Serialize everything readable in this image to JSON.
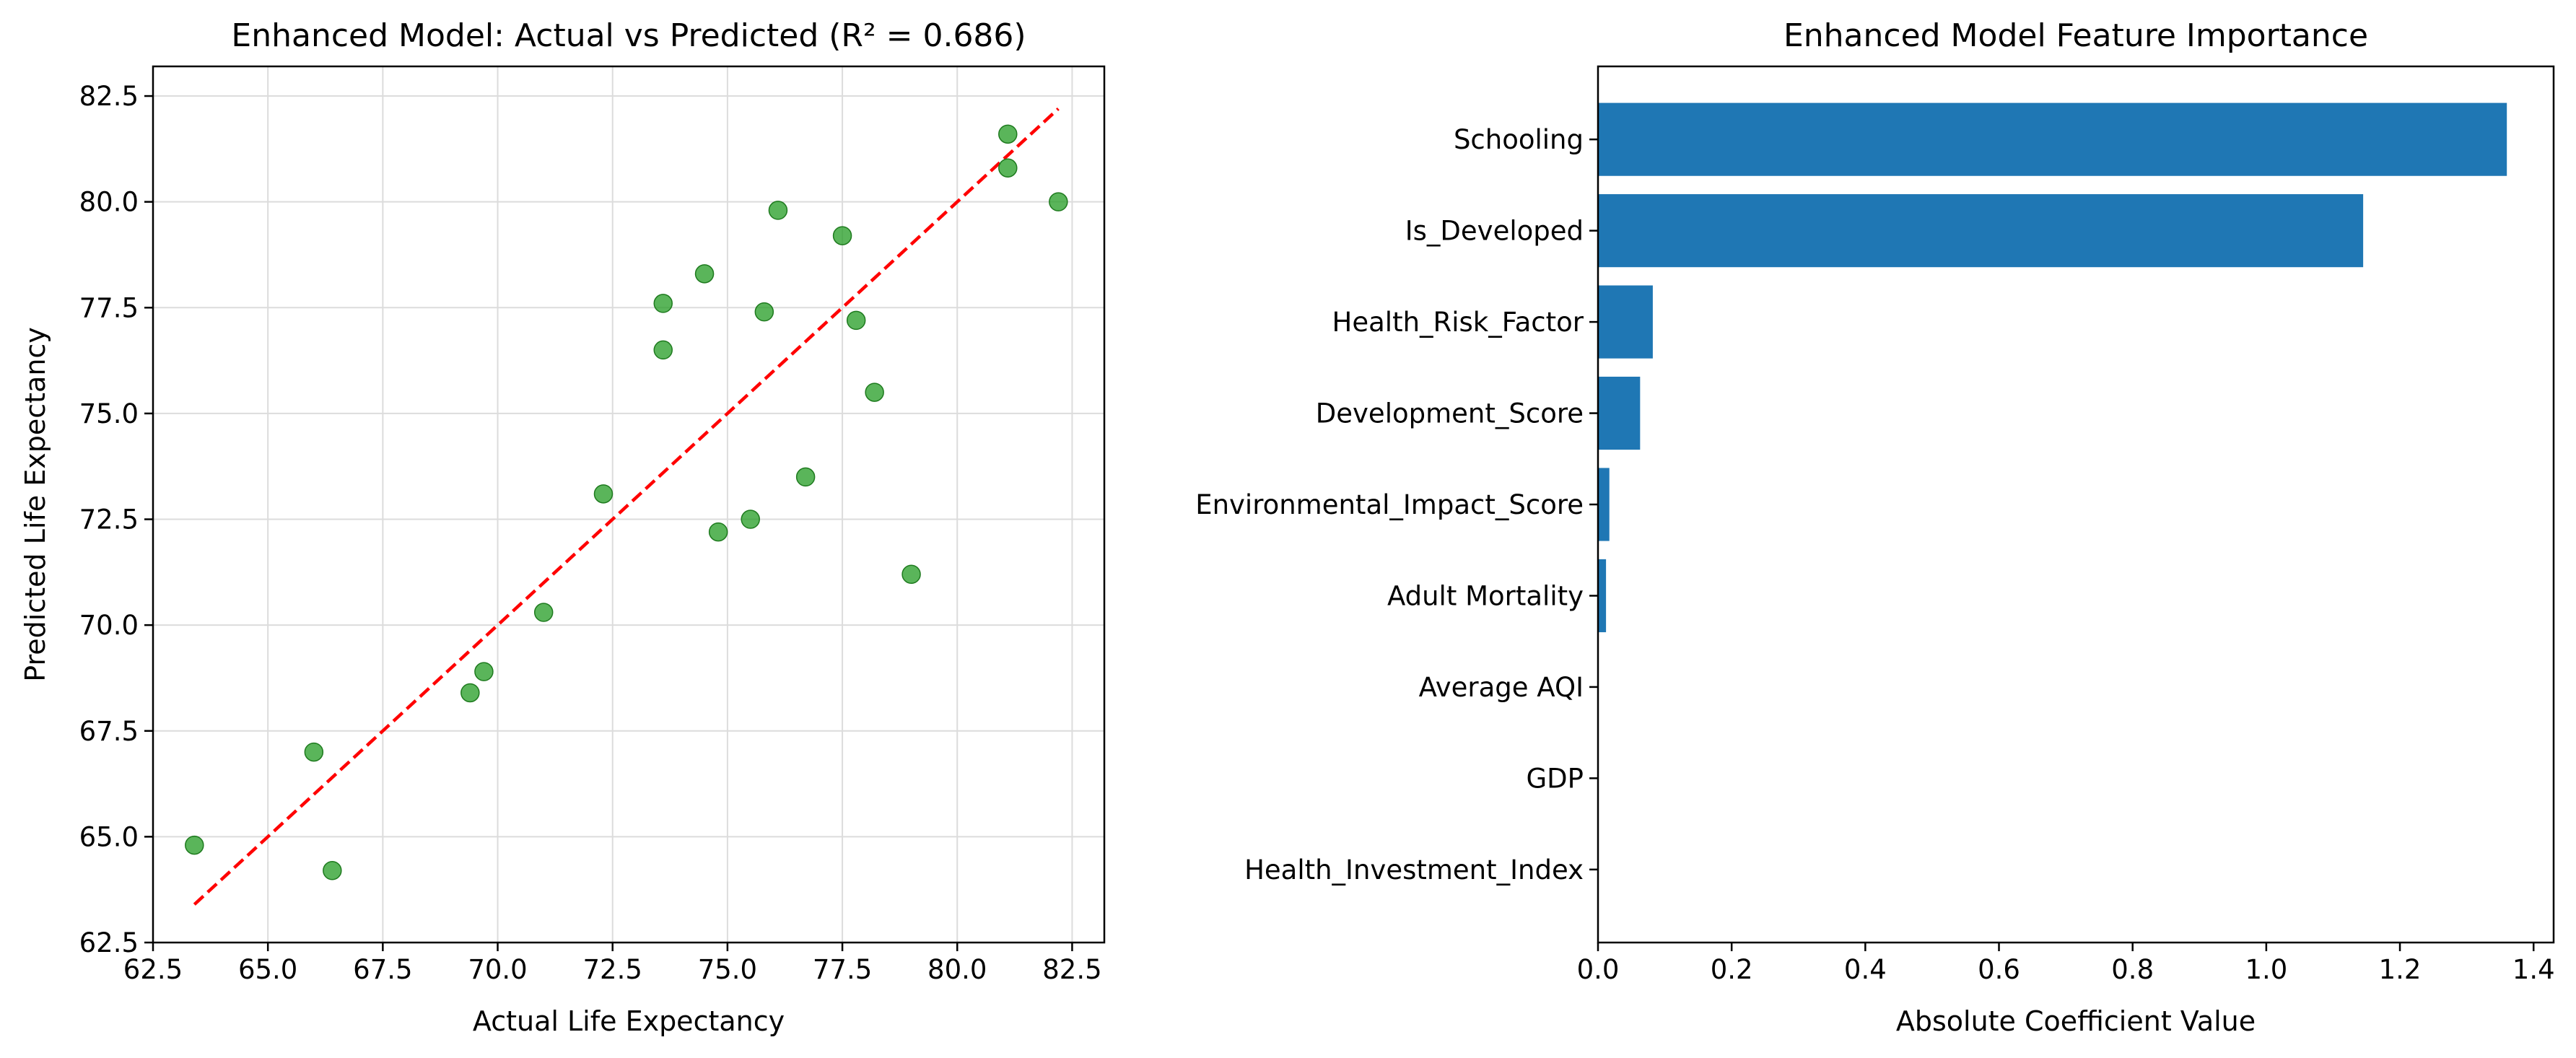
{
  "chart_data": [
    {
      "type": "scatter",
      "title": "Enhanced Model: Actual vs Predicted (R² = 0.686)",
      "xlabel": "Actual Life Expectancy",
      "ylabel": "Predicted Life Expectancy",
      "xlim": [
        62.5,
        83.2
      ],
      "ylim": [
        62.5,
        83.2
      ],
      "xticks": [
        "62.5",
        "65.0",
        "67.5",
        "70.0",
        "72.5",
        "75.0",
        "77.5",
        "80.0",
        "82.5"
      ],
      "yticks": [
        "62.5",
        "65.0",
        "67.5",
        "70.0",
        "72.5",
        "75.0",
        "77.5",
        "80.0",
        "82.5"
      ],
      "grid": true,
      "point_color": "#2ca02c",
      "reference_line": {
        "style": "dashed",
        "color": "#ff0000",
        "from": [
          63.4,
          63.4
        ],
        "to": [
          82.2,
          82.2
        ]
      },
      "points": [
        {
          "x": 63.4,
          "y": 64.8
        },
        {
          "x": 66.0,
          "y": 67.0
        },
        {
          "x": 66.4,
          "y": 64.2
        },
        {
          "x": 69.4,
          "y": 68.4
        },
        {
          "x": 69.7,
          "y": 68.9
        },
        {
          "x": 71.0,
          "y": 70.3
        },
        {
          "x": 72.3,
          "y": 73.1
        },
        {
          "x": 73.6,
          "y": 77.6
        },
        {
          "x": 73.6,
          "y": 76.5
        },
        {
          "x": 74.5,
          "y": 78.3
        },
        {
          "x": 74.8,
          "y": 72.2
        },
        {
          "x": 75.5,
          "y": 72.5
        },
        {
          "x": 75.8,
          "y": 77.4
        },
        {
          "x": 76.1,
          "y": 79.8
        },
        {
          "x": 76.7,
          "y": 73.5
        },
        {
          "x": 77.5,
          "y": 79.2
        },
        {
          "x": 77.8,
          "y": 77.2
        },
        {
          "x": 78.2,
          "y": 75.5
        },
        {
          "x": 79.0,
          "y": 71.2
        },
        {
          "x": 81.1,
          "y": 81.6
        },
        {
          "x": 81.1,
          "y": 80.8
        },
        {
          "x": 82.2,
          "y": 80.0
        }
      ]
    },
    {
      "type": "bar",
      "orientation": "horizontal",
      "title": "Enhanced Model Feature Importance",
      "xlabel": "Absolute Coefficient Value",
      "ylabel": "",
      "xlim": [
        0,
        1.43
      ],
      "xticks": [
        "0.0",
        "0.2",
        "0.4",
        "0.6",
        "0.8",
        "1.0",
        "1.2",
        "1.4"
      ],
      "grid": false,
      "bar_color": "#1f77b4",
      "categories": [
        "Schooling",
        "Is_Developed",
        "Health_Risk_Factor",
        "Development_Score",
        "Environmental_Impact_Score",
        "Adult Mortality",
        "Average AQI",
        "GDP",
        "Health_Investment_Index"
      ],
      "values": [
        1.36,
        1.145,
        0.082,
        0.063,
        0.017,
        0.012,
        0.0,
        0.0,
        0.0
      ]
    }
  ]
}
